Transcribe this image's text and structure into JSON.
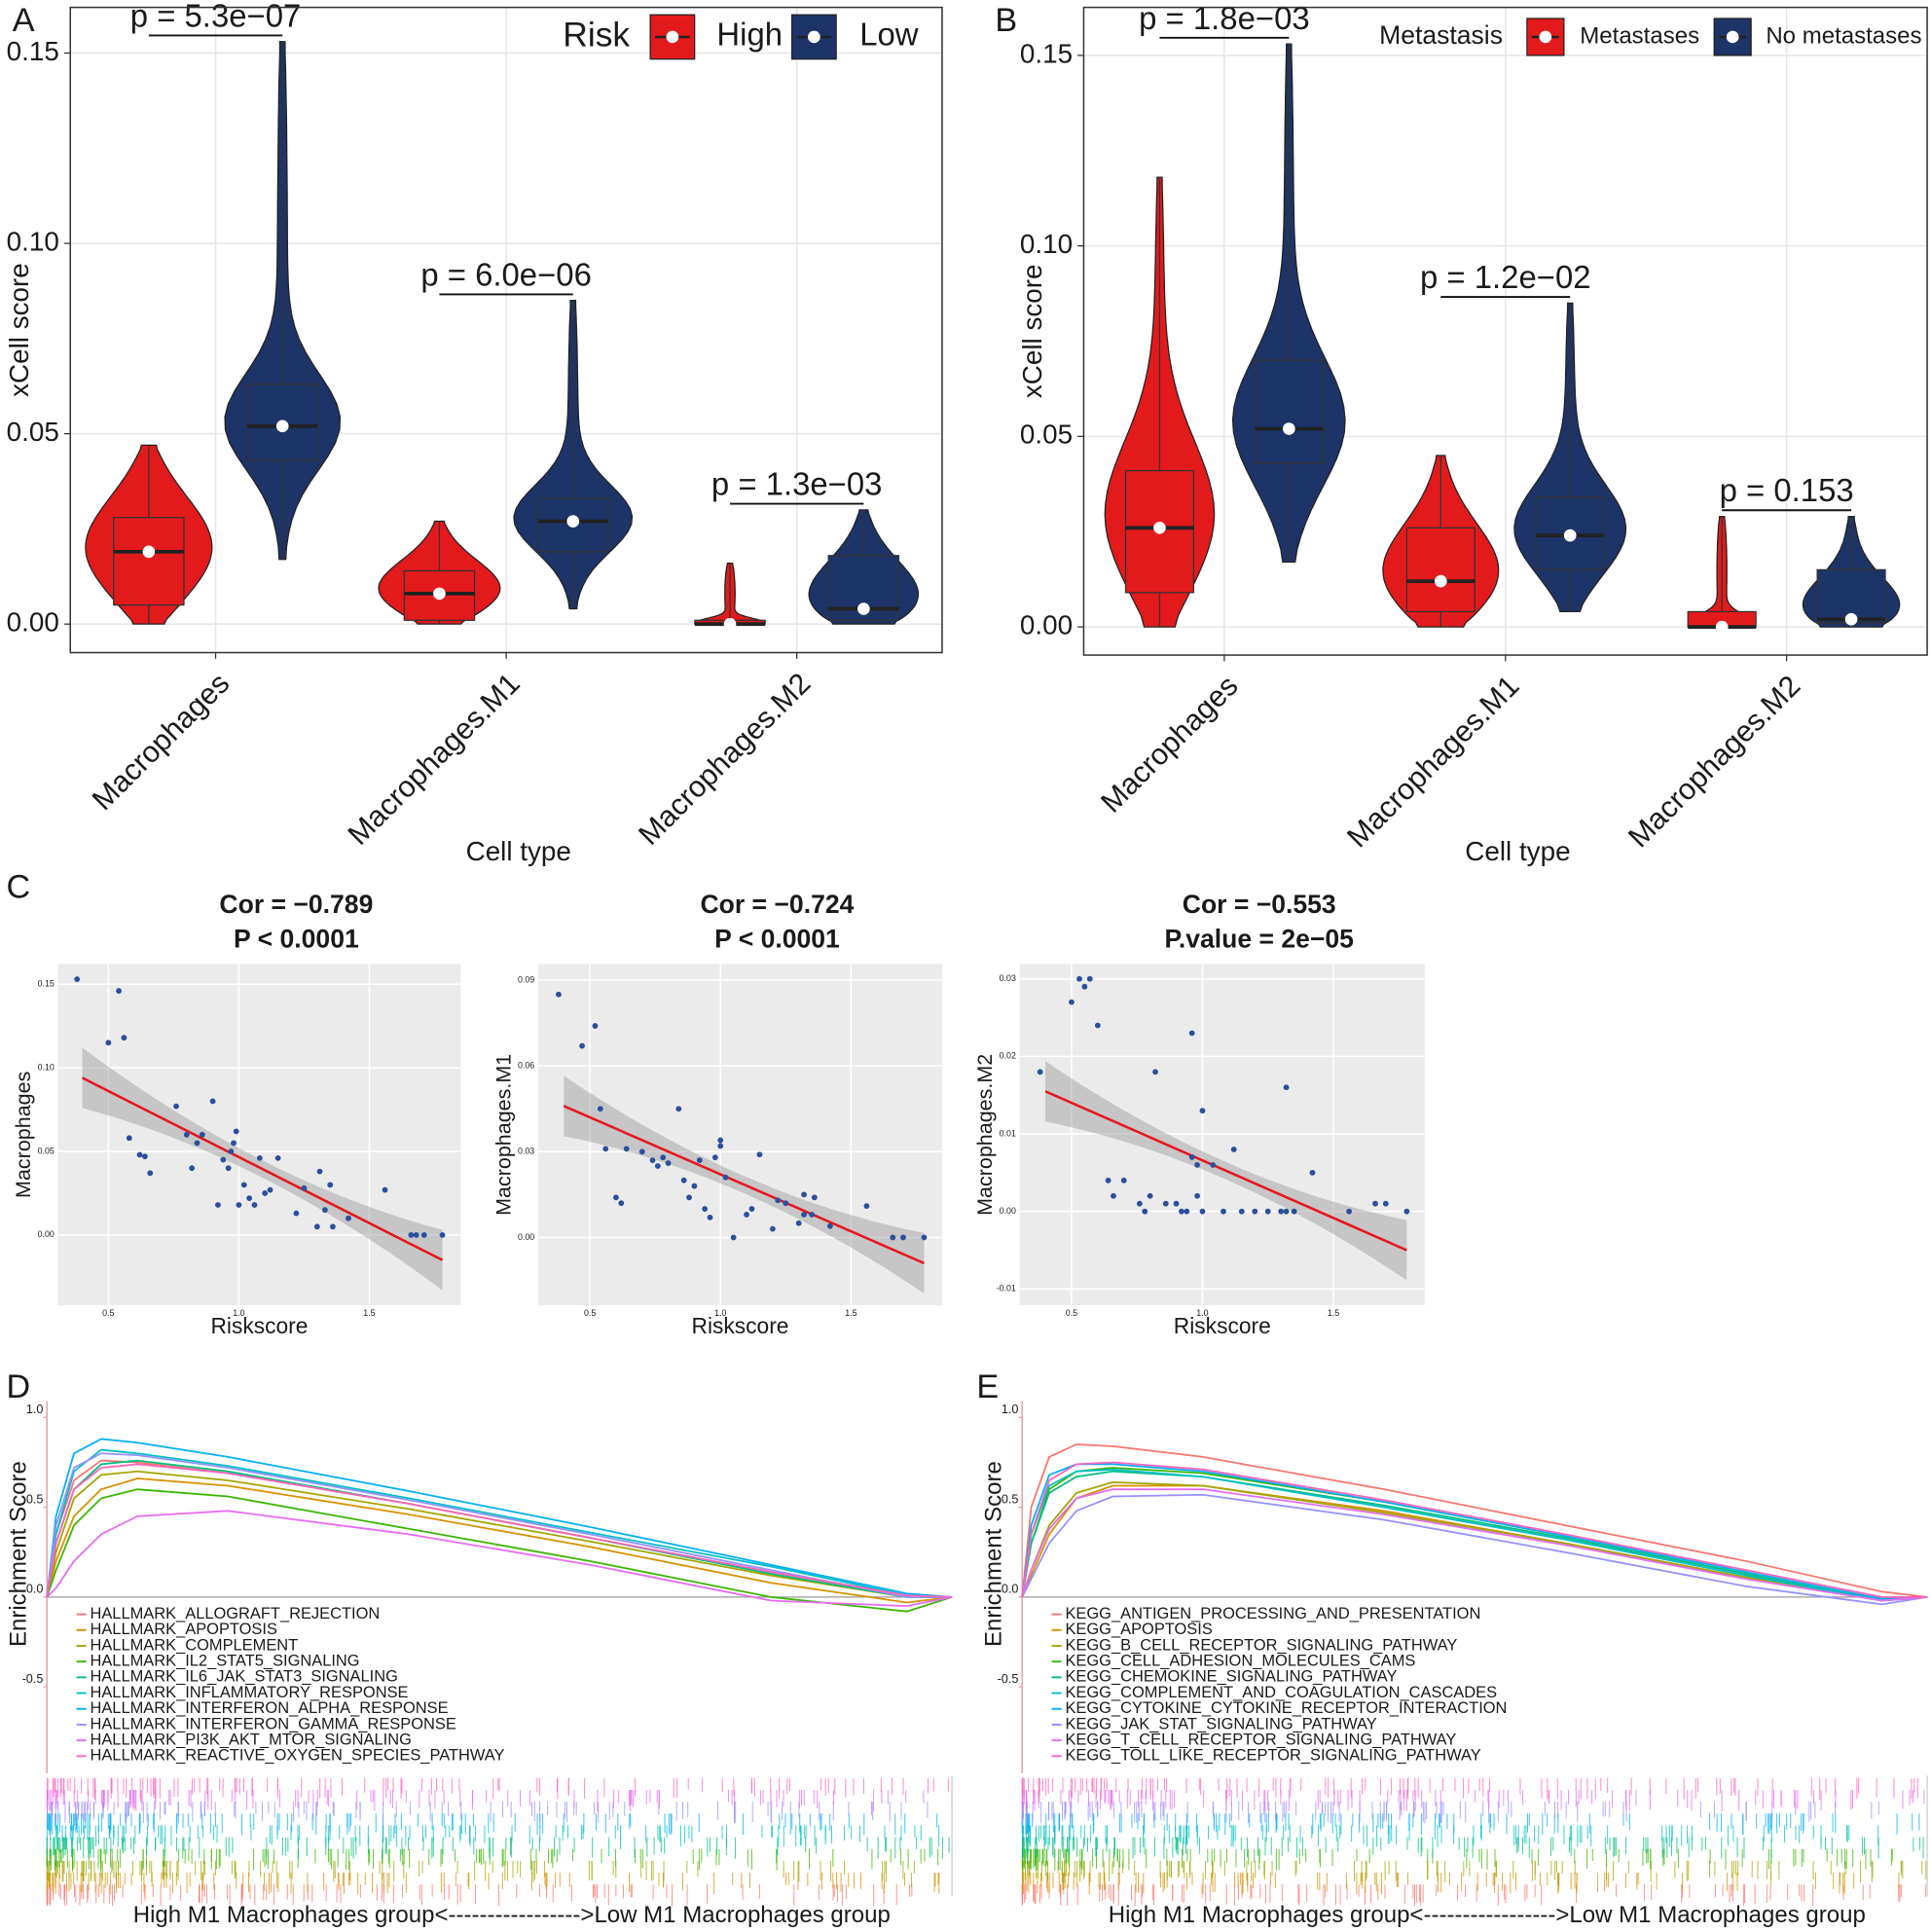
{
  "chart_data": [
    {
      "type": "violin",
      "label": "A",
      "ylabel": "xCell score",
      "xlabel": "Cell type",
      "categories": [
        "Macrophages",
        "Macrophages.M1",
        "Macrophages.M2"
      ],
      "legend_title": "Risk",
      "series": [
        {
          "name": "High",
          "color": "#e31a1c",
          "min": [
            0,
            0,
            0
          ],
          "q1": [
            0.005,
            0.001,
            0
          ],
          "median": [
            0.019,
            0.008,
            0
          ],
          "q3": [
            0.028,
            0.014,
            0.001
          ],
          "max": [
            0.047,
            0.027,
            0.016
          ]
        },
        {
          "name": "Low",
          "color": "#1d3468",
          "min": [
            0.017,
            0.004,
            0
          ],
          "q1": [
            0.043,
            0.019,
            0.001
          ],
          "median": [
            0.052,
            0.027,
            0.004
          ],
          "q3": [
            0.063,
            0.033,
            0.018
          ],
          "max": [
            0.153,
            0.085,
            0.03
          ]
        }
      ],
      "annotations": [
        "p = 5.3e−07",
        "p = 6.0e−06",
        "p = 1.3e−03"
      ],
      "ylim": [
        -0.0075,
        0.162
      ],
      "yticks": [
        {
          "value": 0,
          "label": "0.00"
        },
        0.05,
        {
          "value": 0.1,
          "label": "0.10"
        },
        0.15
      ],
      "grid": true
    },
    {
      "type": "violin",
      "label": "B",
      "ylabel": "xCell score",
      "xlabel": "Cell type",
      "categories": [
        "Macrophages",
        "Macrophages.M1",
        "Macrophages.M2"
      ],
      "legend_title": "Metastasis",
      "series": [
        {
          "name": "Metastases",
          "color": "#e31a1c",
          "min": [
            0,
            0,
            0
          ],
          "q1": [
            0.009,
            0.004,
            0
          ],
          "median": [
            0.026,
            0.012,
            0
          ],
          "q3": [
            0.041,
            0.026,
            0.004
          ],
          "max": [
            0.118,
            0.045,
            0.029
          ]
        },
        {
          "name": "No metastases",
          "color": "#1d3468",
          "min": [
            0.017,
            0.004,
            0
          ],
          "q1": [
            0.043,
            0.015,
            0.001
          ],
          "median": [
            0.052,
            0.024,
            0.002
          ],
          "q3": [
            0.07,
            0.034,
            0.015
          ],
          "max": [
            0.153,
            0.085,
            0.029
          ]
        }
      ],
      "annotations": [
        "p = 1.8e−03",
        "p = 1.2e−02",
        "p = 0.153"
      ],
      "ylim": [
        -0.0074,
        0.1626
      ],
      "yticks": [
        {
          "value": 0,
          "label": "0.00"
        },
        0.05,
        {
          "value": 0.1,
          "label": "0.10"
        },
        0.15
      ],
      "grid": true
    },
    {
      "type": "scatter",
      "label": "C",
      "title": [
        "Cor = −0.789",
        "P < 0.0001"
      ],
      "xlabel": "Riskscore",
      "ylabel": "Macrophages",
      "color": "#2b4f9e",
      "x": [
        0.38,
        0.5,
        0.54,
        0.56,
        0.58,
        0.62,
        0.64,
        0.66,
        0.76,
        0.8,
        0.82,
        0.84,
        0.86,
        0.9,
        0.92,
        0.94,
        0.96,
        0.97,
        0.98,
        0.99,
        1.0,
        1.02,
        1.04,
        1.06,
        1.08,
        1.1,
        1.12,
        1.15,
        1.22,
        1.25,
        1.3,
        1.31,
        1.33,
        1.35,
        1.36,
        1.42,
        1.56,
        1.66,
        1.68,
        1.71,
        1.78
      ],
      "values": [
        0.153,
        0.115,
        0.146,
        0.118,
        0.058,
        0.048,
        0.047,
        0.037,
        0.077,
        0.06,
        0.04,
        0.055,
        0.06,
        0.08,
        0.018,
        0.045,
        0.04,
        0.05,
        0.055,
        0.062,
        0.018,
        0.03,
        0.022,
        0.018,
        0.046,
        0.025,
        0.027,
        0.046,
        0.013,
        0.028,
        0.005,
        0.038,
        0.015,
        0.03,
        0.005,
        0.01,
        0.027,
        0,
        0,
        0,
        0
      ],
      "fit": {
        "x": [
          0.4,
          1.78
        ],
        "values": [
          0.094,
          -0.015
        ],
        "color": "#e8141b"
      },
      "xlim": [
        0.307,
        1.85
      ],
      "ylim": [
        -0.042,
        0.162
      ],
      "xticks": [
        0.5,
        {
          "value": 1,
          "label": "1.0"
        },
        1.5
      ],
      "yticks": [
        {
          "value": 0,
          "label": "0.00"
        },
        0.05,
        {
          "value": 0.1,
          "label": "0.10"
        },
        0.15
      ],
      "grid": true
    },
    {
      "type": "scatter",
      "title": [
        "Cor = −0.724",
        "P < 0.0001"
      ],
      "xlabel": "Riskscore",
      "ylabel": "Macrophages.M1",
      "color": "#2b4f9e",
      "x": [
        0.38,
        0.47,
        0.52,
        0.54,
        0.56,
        0.6,
        0.62,
        0.64,
        0.7,
        0.74,
        0.76,
        0.78,
        0.8,
        0.84,
        0.86,
        0.88,
        0.9,
        0.92,
        0.94,
        0.96,
        0.98,
        1.0,
        1.0,
        1.02,
        1.05,
        1.1,
        1.12,
        1.15,
        1.2,
        1.22,
        1.25,
        1.3,
        1.32,
        1.32,
        1.35,
        1.36,
        1.42,
        1.56,
        1.66,
        1.7,
        1.78
      ],
      "values": [
        0.085,
        0.067,
        0.074,
        0.045,
        0.031,
        0.014,
        0.012,
        0.031,
        0.03,
        0.027,
        0.025,
        0.028,
        0.026,
        0.045,
        0.02,
        0.014,
        0.018,
        0.027,
        0.01,
        0.007,
        0.028,
        0.034,
        0.032,
        0.021,
        0,
        0.008,
        0.01,
        0.029,
        0.003,
        0.013,
        0.012,
        0.005,
        0.015,
        0.008,
        0.008,
        0.014,
        0.004,
        0.011,
        0,
        0,
        0
      ],
      "fit": {
        "x": [
          0.4,
          1.78
        ],
        "values": [
          0.046,
          -0.009
        ],
        "color": "#e8141b"
      },
      "xlim": [
        0.302,
        1.849
      ],
      "ylim": [
        -0.0237,
        0.0956
      ],
      "xticks": [
        0.5,
        {
          "value": 1,
          "label": "1.0"
        },
        1.5
      ],
      "yticks": [
        {
          "value": 0,
          "label": "0.00"
        },
        0.03,
        0.06,
        0.09
      ],
      "grid": true
    },
    {
      "type": "scatter",
      "title": [
        "Cor = −0.553",
        "P.value = 2e−05"
      ],
      "xlabel": "Riskscore",
      "ylabel": "Macrophages.M2",
      "color": "#2b4f9e",
      "x": [
        0.38,
        0.5,
        0.53,
        0.55,
        0.57,
        0.6,
        0.64,
        0.66,
        0.7,
        0.76,
        0.78,
        0.8,
        0.82,
        0.86,
        0.9,
        0.92,
        0.94,
        0.96,
        0.96,
        0.98,
        0.98,
        1.0,
        1.0,
        1.04,
        1.08,
        1.12,
        1.15,
        1.2,
        1.25,
        1.3,
        1.32,
        1.32,
        1.35,
        1.42,
        1.56,
        1.66,
        1.7,
        1.78
      ],
      "values": [
        0.018,
        0.027,
        0.03,
        0.029,
        0.03,
        0.024,
        0.004,
        0.002,
        0.004,
        0.001,
        0,
        0.002,
        0.018,
        0.001,
        0.001,
        0,
        0,
        0.023,
        0.007,
        0.002,
        0.006,
        0.013,
        0,
        0.006,
        0,
        0.008,
        0,
        0,
        0,
        0,
        0.016,
        0,
        0,
        0.005,
        0,
        0.001,
        0.001,
        0
      ],
      "fit": {
        "x": [
          0.4,
          1.78
        ],
        "values": [
          0.0155,
          -0.005
        ],
        "color": "#e8141b"
      },
      "xlim": [
        0.302,
        1.849
      ],
      "ylim": [
        -0.0121,
        0.0319
      ],
      "xticks": [
        0.5,
        {
          "value": 1,
          "label": "1.0"
        },
        1.5
      ],
      "yticks": [
        -0.01,
        {
          "value": 0,
          "label": "0.00"
        },
        0.01,
        0.02,
        0.03
      ],
      "grid": true
    },
    {
      "type": "gsea",
      "label": "D",
      "ylabel": "Enrichment Score",
      "xlabel": "High M1 Macrophages group<----------------->Low M1 Macrophages group",
      "x": [
        0,
        1,
        3,
        6,
        10,
        20,
        40,
        60,
        80,
        95,
        100
      ],
      "series": [
        {
          "name": "HALLMARK_ALLOGRAFT_REJECTION",
          "color": "#f8766d",
          "values": [
            0,
            0.35,
            0.65,
            0.76,
            0.75,
            0.69,
            0.52,
            0.33,
            0.14,
            0.01,
            0
          ]
        },
        {
          "name": "HALLMARK_APOPTOSIS",
          "color": "#d89000",
          "values": [
            0,
            0.2,
            0.45,
            0.6,
            0.66,
            0.62,
            0.46,
            0.28,
            0.08,
            -0.03,
            0
          ]
        },
        {
          "name": "HALLMARK_COMPLEMENT",
          "color": "#a3a500",
          "values": [
            0,
            0.25,
            0.55,
            0.68,
            0.7,
            0.65,
            0.49,
            0.31,
            0.12,
            0,
            0
          ]
        },
        {
          "name": "HALLMARK_IL2_STAT5_SIGNALING",
          "color": "#39b600",
          "values": [
            0,
            0.15,
            0.4,
            0.55,
            0.6,
            0.56,
            0.38,
            0.2,
            0,
            -0.08,
            0
          ]
        },
        {
          "name": "HALLMARK_IL6_JAK_STAT3_SIGNALING",
          "color": "#00bf7d",
          "values": [
            0,
            0.3,
            0.6,
            0.74,
            0.76,
            0.7,
            0.52,
            0.33,
            0.13,
            0,
            0
          ]
        },
        {
          "name": "HALLMARK_INFLAMMATORY_RESPONSE",
          "color": "#00bfc4",
          "values": [
            0,
            0.35,
            0.7,
            0.82,
            0.8,
            0.73,
            0.55,
            0.36,
            0.17,
            0.01,
            0
          ]
        },
        {
          "name": "HALLMARK_INTERFERON_ALPHA_RESPONSE",
          "color": "#00b0f6",
          "values": [
            0,
            0.45,
            0.8,
            0.88,
            0.86,
            0.78,
            0.59,
            0.39,
            0.18,
            0.02,
            0
          ]
        },
        {
          "name": "HALLMARK_INTERFERON_GAMMA_RESPONSE",
          "color": "#9590ff",
          "values": [
            0,
            0.4,
            0.72,
            0.8,
            0.79,
            0.72,
            0.54,
            0.35,
            0.15,
            0,
            0
          ]
        },
        {
          "name": "HALLMARK_PI3K_AKT_MTOR_SIGNALING",
          "color": "#e76bf3",
          "values": [
            0,
            0.05,
            0.2,
            0.35,
            0.45,
            0.48,
            0.35,
            0.18,
            -0.02,
            -0.05,
            0
          ]
        },
        {
          "name": "HALLMARK_REACTIVE_OXYGEN_SPECIES_PATHWAY",
          "color": "#ff62bc",
          "values": [
            0,
            0.3,
            0.6,
            0.72,
            0.74,
            0.69,
            0.52,
            0.33,
            0.14,
            0.01,
            0
          ]
        }
      ],
      "xlim": [
        0,
        100
      ],
      "ylim": [
        -0.98,
        1.09
      ],
      "yticks": [
        -0.5,
        {
          "value": 0,
          "label": "0.0"
        },
        0.5,
        {
          "value": 1,
          "label": "1.0"
        }
      ]
    },
    {
      "type": "gsea",
      "label": "E",
      "ylabel": "Enrichment Score",
      "xlabel": "High M1 Macrophages group<----------------->Low M1 Macrophages group",
      "x": [
        0,
        1,
        3,
        6,
        10,
        20,
        40,
        60,
        80,
        95,
        100
      ],
      "series": [
        {
          "name": "KEGG_ANTIGEN_PROCESSING_AND_PRESENTATION",
          "color": "#f8766d",
          "values": [
            0,
            0.5,
            0.78,
            0.85,
            0.84,
            0.78,
            0.6,
            0.4,
            0.2,
            0.03,
            0
          ]
        },
        {
          "name": "KEGG_APOPTOSIS",
          "color": "#d89000",
          "values": [
            0,
            0.12,
            0.35,
            0.55,
            0.62,
            0.62,
            0.48,
            0.3,
            0.11,
            -0.01,
            0
          ]
        },
        {
          "name": "KEGG_B_CELL_RECEPTOR_SIGNALING_PATHWAY",
          "color": "#a3a500",
          "values": [
            0,
            0.15,
            0.4,
            0.58,
            0.64,
            0.62,
            0.47,
            0.3,
            0.11,
            -0.02,
            0
          ]
        },
        {
          "name": "KEGG_CELL_ADHESION_MOLECULES_CAMS",
          "color": "#39b600",
          "values": [
            0,
            0.3,
            0.6,
            0.7,
            0.72,
            0.69,
            0.53,
            0.34,
            0.14,
            -0.01,
            0
          ]
        },
        {
          "name": "KEGG_CHEMOKINE_SIGNALING_PATHWAY",
          "color": "#00bf7d",
          "values": [
            0,
            0.3,
            0.58,
            0.67,
            0.7,
            0.67,
            0.51,
            0.33,
            0.13,
            -0.02,
            0
          ]
        },
        {
          "name": "KEGG_COMPLEMENT_AND_COAGULATION_CASCADES",
          "color": "#00bfc4",
          "values": [
            0,
            0.35,
            0.62,
            0.7,
            0.71,
            0.67,
            0.5,
            0.32,
            0.12,
            -0.02,
            0
          ]
        },
        {
          "name": "KEGG_CYTOKINE_CYTOKINE_RECEPTOR_INTERACTION",
          "color": "#00b0f6",
          "values": [
            0,
            0.4,
            0.68,
            0.74,
            0.74,
            0.7,
            0.53,
            0.34,
            0.14,
            -0.01,
            0
          ]
        },
        {
          "name": "KEGG_JAK_STAT_SIGNALING_PATHWAY",
          "color": "#9590ff",
          "values": [
            0,
            0.1,
            0.3,
            0.48,
            0.56,
            0.57,
            0.43,
            0.25,
            0.06,
            -0.04,
            0
          ]
        },
        {
          "name": "KEGG_T_CELL_RECEPTOR_SIGNALING_PATHWAY",
          "color": "#e76bf3",
          "values": [
            0,
            0.15,
            0.38,
            0.55,
            0.6,
            0.6,
            0.46,
            0.29,
            0.1,
            -0.02,
            0
          ]
        },
        {
          "name": "KEGG_TOLL_LIKE_RECEPTOR_SIGNALING_PATHWAY",
          "color": "#ff62bc",
          "values": [
            0,
            0.35,
            0.65,
            0.74,
            0.75,
            0.71,
            0.54,
            0.35,
            0.15,
            0,
            0
          ]
        }
      ],
      "xlim": [
        0,
        100
      ],
      "ylim": [
        -0.98,
        1.09
      ],
      "yticks": [
        -0.5,
        {
          "value": 0,
          "label": "0.0"
        },
        0.5,
        {
          "value": 1,
          "label": "1.0"
        }
      ]
    }
  ]
}
